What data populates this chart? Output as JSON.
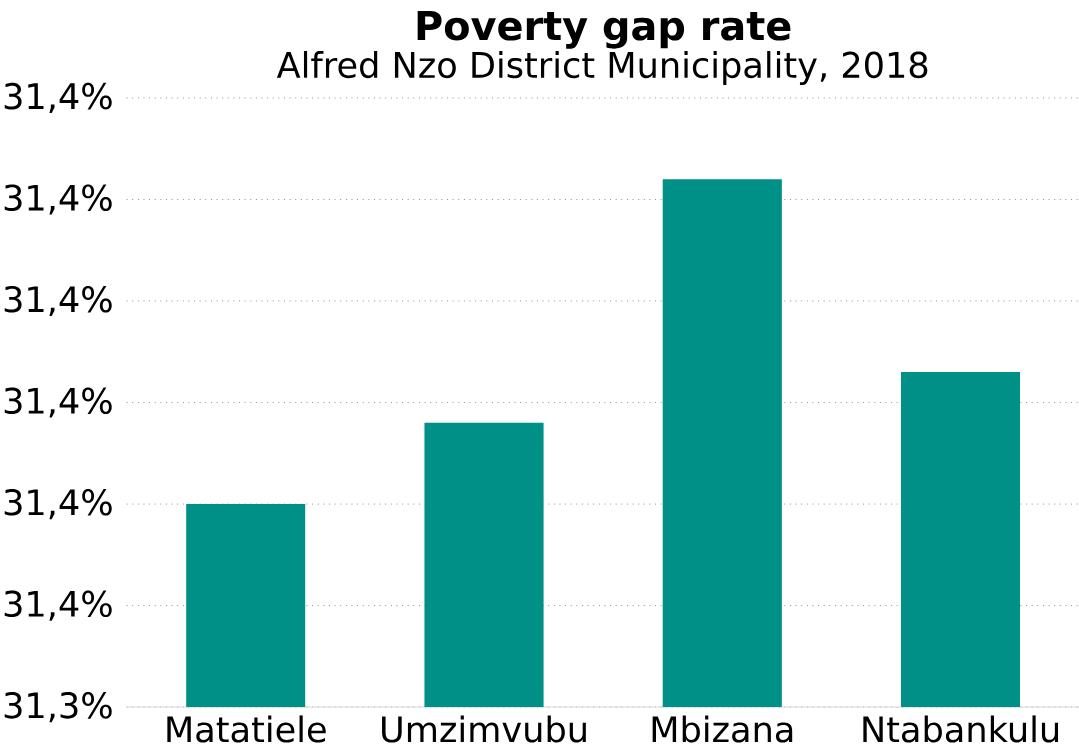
{
  "chart_data": {
    "type": "bar",
    "title": "Poverty gap rate",
    "subtitle": "Alfred Nzo District Municipality, 2018",
    "categories": [
      "Matatiele",
      "Umzimvubu",
      "Mbizana",
      "Ntabankulu"
    ],
    "values": [
      31.351,
      31.3518,
      31.3542,
      31.3523
    ],
    "color": "#009087",
    "ylim": [
      31.349,
      31.355
    ],
    "yticks": [
      {
        "value": 31.349,
        "label": "31,3%"
      },
      {
        "value": 31.35,
        "label": "31,4%"
      },
      {
        "value": 31.351,
        "label": "31,4%"
      },
      {
        "value": 31.352,
        "label": "31,4%"
      },
      {
        "value": 31.353,
        "label": "31,4%"
      },
      {
        "value": 31.354,
        "label": "31,4%"
      },
      {
        "value": 31.355,
        "label": "31,4%"
      }
    ],
    "grid": "y"
  }
}
